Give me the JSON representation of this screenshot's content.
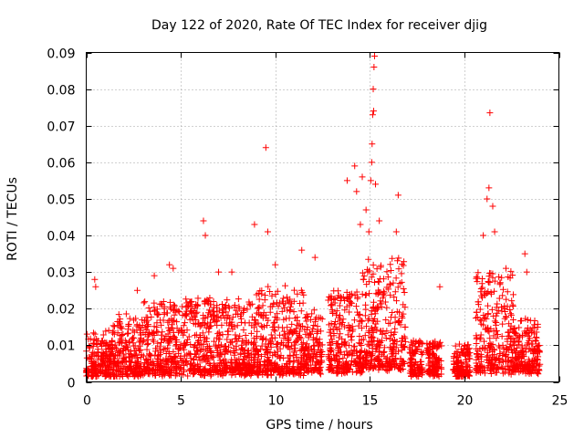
{
  "chart_data": {
    "type": "scatter",
    "title": "Day 122 of 2020, Rate Of TEC Index for receiver djig",
    "xlabel": "GPS time / hours",
    "ylabel": "ROTI / TECUs",
    "xlim": [
      0,
      25
    ],
    "ylim": [
      0,
      0.09
    ],
    "xticks": [
      0,
      5,
      10,
      15,
      20,
      25
    ],
    "xtick_labels": [
      "0",
      "5",
      "10",
      "15",
      "20",
      "25"
    ],
    "yticks": [
      0,
      0.01,
      0.02,
      0.03,
      0.04,
      0.05,
      0.06,
      0.07,
      0.08,
      0.09
    ],
    "ytick_labels": [
      "0",
      "0.01",
      "0.02",
      "0.03",
      "0.04",
      "0.05",
      "0.06",
      "0.07",
      "0.08",
      "0.09"
    ],
    "grid": true,
    "marker": "plus",
    "color": "#ff0000",
    "series": [
      {
        "name": "ROTI",
        "points": [
          [
            0.45,
            0.028
          ],
          [
            0.5,
            0.026
          ],
          [
            3.6,
            0.029
          ],
          [
            4.4,
            0.032
          ],
          [
            4.6,
            0.031
          ],
          [
            6.2,
            0.044
          ],
          [
            6.3,
            0.04
          ],
          [
            7.0,
            0.03
          ],
          [
            7.7,
            0.03
          ],
          [
            8.9,
            0.043
          ],
          [
            9.5,
            0.064
          ],
          [
            9.6,
            0.041
          ],
          [
            10.0,
            0.032
          ],
          [
            11.4,
            0.036
          ],
          [
            13.8,
            0.055
          ],
          [
            14.2,
            0.059
          ],
          [
            14.3,
            0.052
          ],
          [
            14.5,
            0.043
          ],
          [
            14.6,
            0.056
          ],
          [
            14.8,
            0.047
          ],
          [
            14.95,
            0.041
          ],
          [
            15.05,
            0.055
          ],
          [
            15.1,
            0.06
          ],
          [
            15.12,
            0.065
          ],
          [
            15.15,
            0.073
          ],
          [
            15.18,
            0.08
          ],
          [
            15.2,
            0.074
          ],
          [
            15.22,
            0.086
          ],
          [
            15.25,
            0.089
          ],
          [
            15.3,
            0.054
          ],
          [
            15.5,
            0.044
          ],
          [
            16.5,
            0.051
          ],
          [
            16.4,
            0.041
          ],
          [
            18.7,
            0.026
          ],
          [
            21.2,
            0.05
          ],
          [
            21.3,
            0.053
          ],
          [
            21.35,
            0.0735
          ],
          [
            21.5,
            0.048
          ],
          [
            21.6,
            0.041
          ],
          [
            21.0,
            0.04
          ],
          [
            22.2,
            0.031
          ],
          [
            23.2,
            0.035
          ],
          [
            23.3,
            0.03
          ],
          [
            2.7,
            0.025
          ],
          [
            12.1,
            0.034
          ]
        ]
      }
    ],
    "density_envelope": [
      {
        "start": 0.0,
        "end": 1.3,
        "base": 0.002,
        "peak": 0.014
      },
      {
        "start": 1.3,
        "end": 3.0,
        "base": 0.002,
        "peak": 0.018
      },
      {
        "start": 3.0,
        "end": 5.0,
        "base": 0.0025,
        "peak": 0.022
      },
      {
        "start": 5.0,
        "end": 7.0,
        "base": 0.0025,
        "peak": 0.023
      },
      {
        "start": 7.0,
        "end": 9.0,
        "base": 0.0025,
        "peak": 0.022
      },
      {
        "start": 9.0,
        "end": 11.5,
        "base": 0.0025,
        "peak": 0.026
      },
      {
        "start": 11.5,
        "end": 12.5,
        "base": 0.003,
        "peak": 0.02
      },
      {
        "start": 12.8,
        "end": 14.6,
        "base": 0.003,
        "peak": 0.025
      },
      {
        "start": 14.6,
        "end": 16.9,
        "base": 0.004,
        "peak": 0.034
      },
      {
        "start": 17.1,
        "end": 17.8,
        "base": 0.002,
        "peak": 0.012
      },
      {
        "start": 18.0,
        "end": 18.8,
        "base": 0.002,
        "peak": 0.011
      },
      {
        "start": 19.4,
        "end": 20.3,
        "base": 0.002,
        "peak": 0.01
      },
      {
        "start": 20.6,
        "end": 22.6,
        "base": 0.003,
        "peak": 0.03
      },
      {
        "start": 22.6,
        "end": 24.0,
        "base": 0.003,
        "peak": 0.017
      }
    ]
  }
}
